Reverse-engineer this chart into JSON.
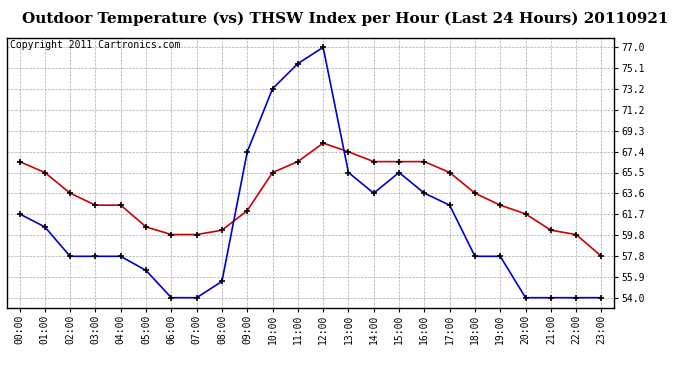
{
  "title": "Outdoor Temperature (vs) THSW Index per Hour (Last 24 Hours) 20110921",
  "copyright": "Copyright 2011 Cartronics.com",
  "x_labels": [
    "00:00",
    "01:00",
    "02:00",
    "03:00",
    "04:00",
    "05:00",
    "06:00",
    "07:00",
    "08:00",
    "09:00",
    "10:00",
    "11:00",
    "12:00",
    "13:00",
    "14:00",
    "15:00",
    "16:00",
    "17:00",
    "18:00",
    "19:00",
    "20:00",
    "21:00",
    "22:00",
    "23:00"
  ],
  "temp_red": [
    66.5,
    65.5,
    63.6,
    62.5,
    62.5,
    60.5,
    59.8,
    59.8,
    60.2,
    62.0,
    65.5,
    66.5,
    68.2,
    67.4,
    66.5,
    66.5,
    66.5,
    65.5,
    63.6,
    62.5,
    61.7,
    60.2,
    59.8,
    57.8
  ],
  "thsw_blue": [
    61.7,
    60.5,
    57.8,
    57.8,
    57.8,
    56.5,
    54.0,
    54.0,
    55.5,
    67.4,
    73.2,
    75.5,
    77.0,
    65.5,
    63.6,
    65.5,
    63.6,
    62.5,
    57.8,
    57.8,
    54.0,
    54.0,
    54.0,
    54.0
  ],
  "y_ticks": [
    54.0,
    55.9,
    57.8,
    59.8,
    61.7,
    63.6,
    65.5,
    67.4,
    69.3,
    71.2,
    73.2,
    75.1,
    77.0
  ],
  "y_min": 53.1,
  "y_max": 77.9,
  "bg_color": "#ffffff",
  "plot_bg": "#ffffff",
  "grid_color": "#aaaaaa",
  "line_color_red": "#cc0000",
  "line_color_blue": "#0000cc",
  "title_fontsize": 11,
  "copyright_fontsize": 7,
  "tick_fontsize": 7
}
